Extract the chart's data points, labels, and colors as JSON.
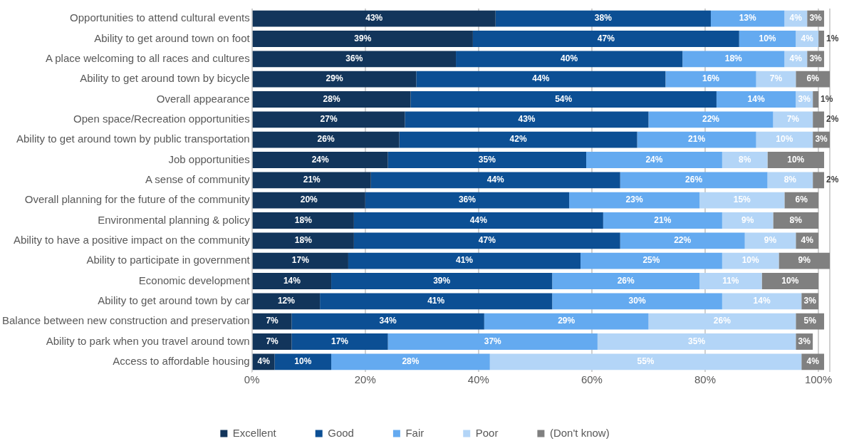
{
  "chart_data": {
    "type": "bar",
    "orientation": "horizontal",
    "stacked": true,
    "categories": [
      "Opportunities to attend cultural events",
      "Ability to get around town on foot",
      "A place welcoming to all races and cultures",
      "Ability to get around town by bicycle",
      "Overall appearance",
      "Open space/Recreation opportunities",
      "Ability to get around town by public transportation",
      "Job opportunities",
      "A sense of community",
      "Overall planning for the future of the community",
      "Environmental planning & policy",
      "Ability to have a positive impact on the community",
      "Ability to participate in government",
      "Economic development",
      "Ability to get around town by car",
      "Balance between new construction and preservation",
      "Ability to park when you travel around town",
      "Access to affordable housing"
    ],
    "series": [
      {
        "name": "Excellent",
        "color": "#12355b",
        "values": [
          43,
          39,
          36,
          29,
          28,
          27,
          26,
          24,
          21,
          20,
          18,
          18,
          17,
          14,
          12,
          7,
          7,
          4
        ],
        "value_labels": [
          "43%",
          "39%",
          "36%",
          "29%",
          "28%",
          "27%",
          "26%",
          "24%",
          "21%",
          "20%",
          "18%",
          "18%",
          "17%",
          "14%",
          "12%",
          "7%",
          "7%",
          "4%"
        ]
      },
      {
        "name": "Good",
        "color": "#0c4f94",
        "values": [
          38,
          47,
          40,
          44,
          54,
          43,
          42,
          35,
          44,
          36,
          44,
          47,
          41,
          39,
          41,
          34,
          17,
          10
        ],
        "value_labels": [
          "38%",
          "47%",
          "40%",
          "44%",
          "54%",
          "43%",
          "42%",
          "35%",
          "44%",
          "36%",
          "44%",
          "47%",
          "41%",
          "39%",
          "41%",
          "34%",
          "17%",
          "10%"
        ]
      },
      {
        "name": "Fair",
        "color": "#64aaf0",
        "values": [
          13,
          10,
          18,
          16,
          14,
          22,
          21,
          24,
          26,
          23,
          21,
          22,
          25,
          26,
          30,
          29,
          37,
          28
        ],
        "value_labels": [
          "13%",
          "10%",
          "18%",
          "16%",
          "14%",
          "22%",
          "21%",
          "24%",
          "26%",
          "23%",
          "21%",
          "22%",
          "25%",
          "26%",
          "30%",
          "29%",
          "37%",
          "28%"
        ]
      },
      {
        "name": "Poor",
        "color": "#b3d5f7",
        "values": [
          4,
          4,
          4,
          7,
          3,
          7,
          10,
          8,
          8,
          15,
          9,
          9,
          10,
          11,
          14,
          26,
          35,
          55
        ],
        "value_labels": [
          "4%",
          "4%",
          "4%",
          "7%",
          "3%",
          "7%",
          "10%",
          "8%",
          "8%",
          "15%",
          "9%",
          "9%",
          "10%",
          "11%",
          "14%",
          "26%",
          "35%",
          "55%"
        ]
      },
      {
        "name": "(Don't know)",
        "color": "#808080",
        "values": [
          3,
          1,
          3,
          6,
          1,
          2,
          3,
          10,
          2,
          6,
          8,
          4,
          9,
          10,
          3,
          5,
          3,
          4
        ],
        "value_labels": [
          "3%",
          "1%",
          "3%",
          "6%",
          "1%",
          "2%",
          "3%",
          "10%",
          "2%",
          "6%",
          "8%",
          "4%",
          "9%",
          "10%",
          "3%",
          "5%",
          "3%",
          "4%"
        ]
      }
    ],
    "xlim": [
      0,
      102
    ],
    "xticks": [
      {
        "value": 0,
        "label": "0%"
      },
      {
        "value": 20,
        "label": "20%"
      },
      {
        "value": 40,
        "label": "40%"
      },
      {
        "value": 60,
        "label": "60%"
      },
      {
        "value": 80,
        "label": "80%"
      },
      {
        "value": 100,
        "label": "100%"
      },
      {
        "value": 102,
        "label": null
      }
    ],
    "grid": "x",
    "legend": "bottom"
  }
}
